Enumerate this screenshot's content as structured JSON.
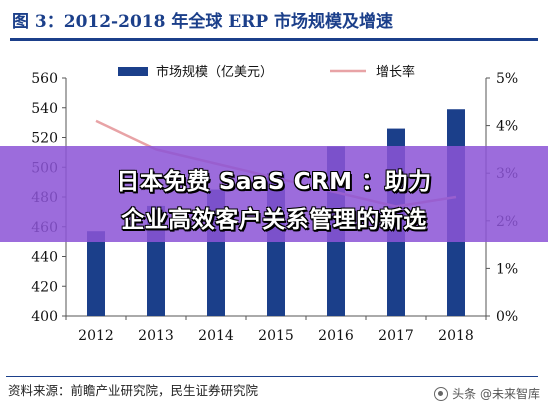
{
  "figure": {
    "title": "图 3：2012-2018 年全球 ERP 市场规模及增速"
  },
  "source": {
    "text": "资料来源：前瞻产业研究院，民生证券研究院"
  },
  "watermark": {
    "text": "头条 @未来智库"
  },
  "overlay": {
    "line1": "日本免费 SaaS CRM ：助力",
    "line2": "企业高效客户关系管理的新选"
  },
  "colors": {
    "bar": "#1b3f8a",
    "line": "#e8a3a6",
    "title": "#1b3f8a",
    "overlay": "#8c54d6"
  },
  "chart_data": {
    "type": "bar+line",
    "categories": [
      "2012",
      "2013",
      "2014",
      "2015",
      "2016",
      "2017",
      "2018"
    ],
    "series": [
      {
        "name": "市场规模（亿美元）",
        "type": "bar",
        "axis": "left",
        "values": [
          457,
          474,
          485,
          496,
          514,
          526,
          539
        ]
      },
      {
        "name": "增长率",
        "type": "line",
        "axis": "right",
        "values": [
          4.1,
          3.5,
          null,
          null,
          2.6,
          2.3,
          2.5
        ]
      }
    ],
    "y_left": {
      "min": 400,
      "max": 560,
      "step": 20,
      "ticks": [
        "400",
        "420",
        "440",
        "460",
        "480",
        "500",
        "520",
        "540",
        "560"
      ]
    },
    "y_right": {
      "min": 0,
      "max": 5,
      "step": 1,
      "ticks": [
        "0%",
        "1%",
        "2%",
        "3%",
        "4%",
        "5%"
      ]
    },
    "legend": [
      "市场规模（亿美元）",
      "增长率"
    ],
    "legend_position": "top",
    "grid": false
  }
}
